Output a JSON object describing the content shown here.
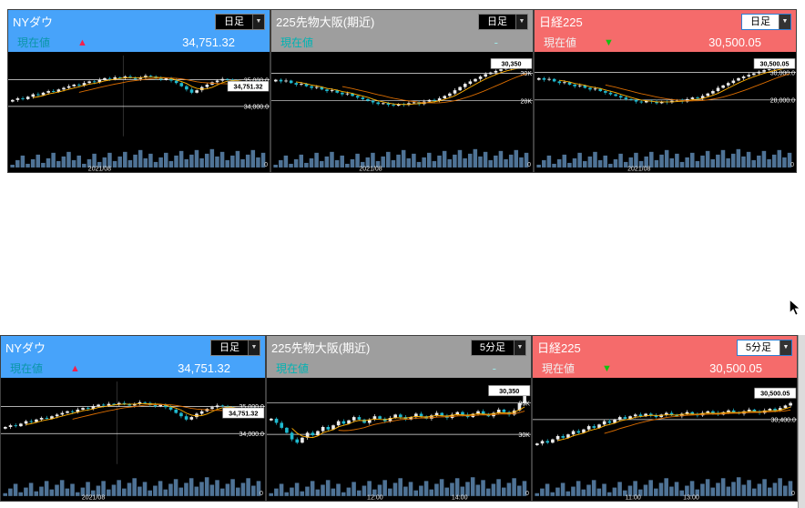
{
  "cursor": {
    "shape": "arrow-pointer"
  },
  "scrollbar": {
    "present": true
  },
  "rows": [
    {
      "panels": [
        {
          "title": "NYダウ",
          "timeframe": "日足",
          "select_focused": false,
          "current_label": "現在値",
          "arrow": "▲",
          "value": "34,751.32",
          "colors": {
            "header": "#47a3fa",
            "label": "#0a96a8",
            "arrow": "#f5204a",
            "value": "#ffffff"
          },
          "chart": {
            "y_axis": [
              {
                "label": "35,000.0",
                "pct": 30
              },
              {
                "label": "34,000.0",
                "pct": 63
              }
            ],
            "price_box": {
              "label": "34,751.32",
              "pct": 38
            },
            "x_labels": [
              {
                "label": "2021/08",
                "pct": 35
              }
            ],
            "v_grid": [
              44
            ],
            "zero_label": "0",
            "closes": [
              45,
              47,
              46,
              49,
              52,
              51,
              54,
              56,
              55,
              58,
              60,
              62,
              64,
              63,
              66,
              68,
              67,
              70,
              72,
              71,
              73,
              72,
              74,
              73,
              71,
              73,
              75,
              74,
              72,
              70,
              72,
              69,
              66,
              62,
              58,
              54,
              57,
              61,
              64,
              67,
              69,
              71,
              70,
              68,
              66,
              64,
              66,
              68,
              65,
              62
            ]
          }
        },
        {
          "title": "225先物大阪(期近)",
          "timeframe": "日足",
          "select_focused": false,
          "current_label": "現在値",
          "arrow": "",
          "value": "-",
          "colors": {
            "header": "#9e9e9e",
            "label": "#00b3b3",
            "arrow": "#00b3b3",
            "value": "#9fe8e8"
          },
          "chart": {
            "y_axis": [
              {
                "label": "30K",
                "pct": 22
              },
              {
                "label": "28K",
                "pct": 56
              }
            ],
            "price_box": {
              "label": "30,350",
              "pct": 10
            },
            "x_labels": [
              {
                "label": "2021/08",
                "pct": 38
              }
            ],
            "v_grid": [],
            "zero_label": "0",
            "closes": [
              70,
              68,
              69,
              66,
              64,
              65,
              62,
              60,
              61,
              58,
              56,
              57,
              54,
              52,
              53,
              50,
              48,
              46,
              44,
              42,
              40,
              41,
              39,
              38,
              40,
              39,
              41,
              42,
              40,
              43,
              45,
              44,
              47,
              50,
              53,
              57,
              61,
              65,
              68,
              71,
              74,
              77,
              79,
              81,
              83,
              84,
              85,
              86,
              85,
              86
            ]
          }
        },
        {
          "title": "日経225",
          "timeframe": "日足",
          "select_focused": true,
          "current_label": "現在値",
          "arrow": "▼",
          "value": "30,500.05",
          "colors": {
            "header": "#f56b6b",
            "label": "#f0f0f0",
            "arrow": "#12c212",
            "value": "#ffffff"
          },
          "chart": {
            "y_axis": [
              {
                "label": "30,000.0",
                "pct": 21
              },
              {
                "label": "28,000.0",
                "pct": 55
              }
            ],
            "price_box": {
              "label": "30,500.05",
              "pct": 10
            },
            "x_labels": [
              {
                "label": "2021/08",
                "pct": 40
              }
            ],
            "v_grid": [],
            "zero_label": "0",
            "closes": [
              72,
              70,
              71,
              68,
              66,
              67,
              64,
              62,
              63,
              60,
              58,
              59,
              56,
              54,
              52,
              50,
              48,
              46,
              45,
              43,
              42,
              44,
              43,
              41,
              43,
              42,
              44,
              45,
              43,
              46,
              48,
              47,
              50,
              53,
              56,
              60,
              63,
              66,
              69,
              72,
              74,
              76,
              78,
              80,
              82,
              83,
              84,
              85,
              86,
              86
            ]
          }
        }
      ]
    },
    {
      "panels": [
        {
          "title": "NYダウ",
          "timeframe": "日足",
          "select_focused": false,
          "current_label": "現在値",
          "arrow": "▲",
          "value": "34,751.32",
          "colors": {
            "header": "#47a3fa",
            "label": "#0a96a8",
            "arrow": "#f5204a",
            "value": "#ffffff"
          },
          "chart": {
            "y_axis": [
              {
                "label": "35,000.0",
                "pct": 30
              },
              {
                "label": "34,000.0",
                "pct": 63
              }
            ],
            "price_box": {
              "label": "34,751.32",
              "pct": 38
            },
            "x_labels": [
              {
                "label": "2021/08",
                "pct": 35
              }
            ],
            "v_grid": [
              44
            ],
            "zero_label": "0",
            "closes": [
              45,
              47,
              46,
              49,
              52,
              51,
              54,
              56,
              55,
              58,
              60,
              62,
              64,
              63,
              66,
              68,
              67,
              70,
              72,
              71,
              73,
              72,
              74,
              73,
              71,
              73,
              75,
              74,
              72,
              70,
              72,
              69,
              66,
              62,
              58,
              54,
              57,
              61,
              64,
              67,
              69,
              71,
              70,
              68,
              66,
              64,
              66,
              68,
              65,
              62
            ]
          }
        },
        {
          "title": "225先物大阪(期近)",
          "timeframe": "5分足",
          "select_focused": false,
          "current_label": "現在値",
          "arrow": "",
          "value": "-",
          "colors": {
            "header": "#9e9e9e",
            "label": "#00b3b3",
            "arrow": "#00b3b3",
            "value": "#9fe8e8"
          },
          "chart": {
            "y_axis": [
              {
                "label": "30K",
                "pct": 26
              },
              {
                "label": "30K",
                "pct": 64
              }
            ],
            "price_box": {
              "label": "30,350",
              "pct": 11
            },
            "x_labels": [
              {
                "label": "12:00",
                "pct": 41
              },
              {
                "label": "14:00",
                "pct": 73
              }
            ],
            "v_grid": [],
            "zero_label": "0",
            "closes": [
              55,
              50,
              44,
              38,
              30,
              26,
              32,
              38,
              35,
              40,
              45,
              42,
              47,
              52,
              49,
              53,
              57,
              54,
              50,
              54,
              58,
              55,
              52,
              56,
              60,
              57,
              54,
              57,
              61,
              58,
              55,
              59,
              62,
              59,
              56,
              60,
              63,
              60,
              57,
              61,
              64,
              61,
              58,
              62,
              66,
              63,
              60,
              65,
              74,
              85
            ]
          }
        },
        {
          "title": "日経225",
          "timeframe": "5分足",
          "select_focused": true,
          "current_label": "現在値",
          "arrow": "▼",
          "value": "30,500.05",
          "colors": {
            "header": "#f56b6b",
            "label": "#f0f0f0",
            "arrow": "#12c212",
            "value": "#ffffff"
          },
          "chart": {
            "y_axis": [
              {
                "label": "30,400.0",
                "pct": 46
              }
            ],
            "price_box": {
              "label": "30,500.05",
              "pct": 14
            },
            "x_labels": [
              {
                "label": "11:00",
                "pct": 38
              },
              {
                "label": "13:00",
                "pct": 60
              }
            ],
            "v_grid": [],
            "zero_label": "0",
            "closes": [
              25,
              28,
              26,
              30,
              34,
              32,
              36,
              40,
              38,
              42,
              46,
              44,
              48,
              52,
              50,
              54,
              57,
              55,
              58,
              60,
              58,
              61,
              59,
              57,
              60,
              62,
              60,
              58,
              61,
              63,
              61,
              59,
              62,
              64,
              62,
              60,
              63,
              65,
              63,
              61,
              64,
              66,
              64,
              62,
              65,
              67,
              65,
              68,
              71,
              74
            ]
          }
        }
      ]
    }
  ]
}
